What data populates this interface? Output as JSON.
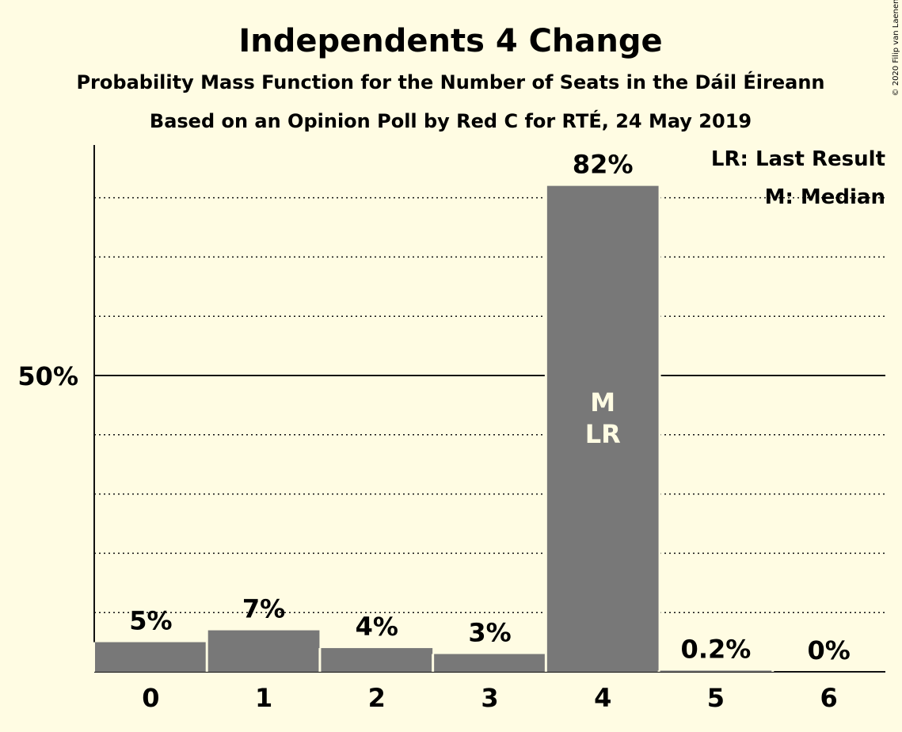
{
  "chart_data": {
    "type": "bar",
    "title": "Independents 4 Change",
    "subtitle": "Probability Mass Function for the Number of Seats in the Dáil Éireann",
    "subtitle2": "Based on an Opinion Poll by Red C for RTÉ, 24 May 2019",
    "copyright": "© 2020 Filip van Laenen",
    "categories": [
      "0",
      "1",
      "2",
      "3",
      "4",
      "5",
      "6"
    ],
    "values": [
      5,
      7,
      4,
      3,
      82,
      0.2,
      0
    ],
    "value_labels": [
      "5%",
      "7%",
      "4%",
      "3%",
      "82%",
      "0.2%",
      "0%"
    ],
    "ylim": [
      0,
      89
    ],
    "y_ticks": [
      {
        "value": 50,
        "label": "50%"
      }
    ],
    "grid": "dotted, every 10%",
    "median_index": 4,
    "last_result_index": 4,
    "median_marker": "M",
    "last_result_marker": "LR",
    "legend": [
      "LR: Last Result",
      "M: Median"
    ],
    "legend_position": "top-right",
    "colors": {
      "background": "#FFFCE3",
      "bar": "#787878",
      "axis": "#111111",
      "marker_text": "#FFFCE3"
    }
  }
}
